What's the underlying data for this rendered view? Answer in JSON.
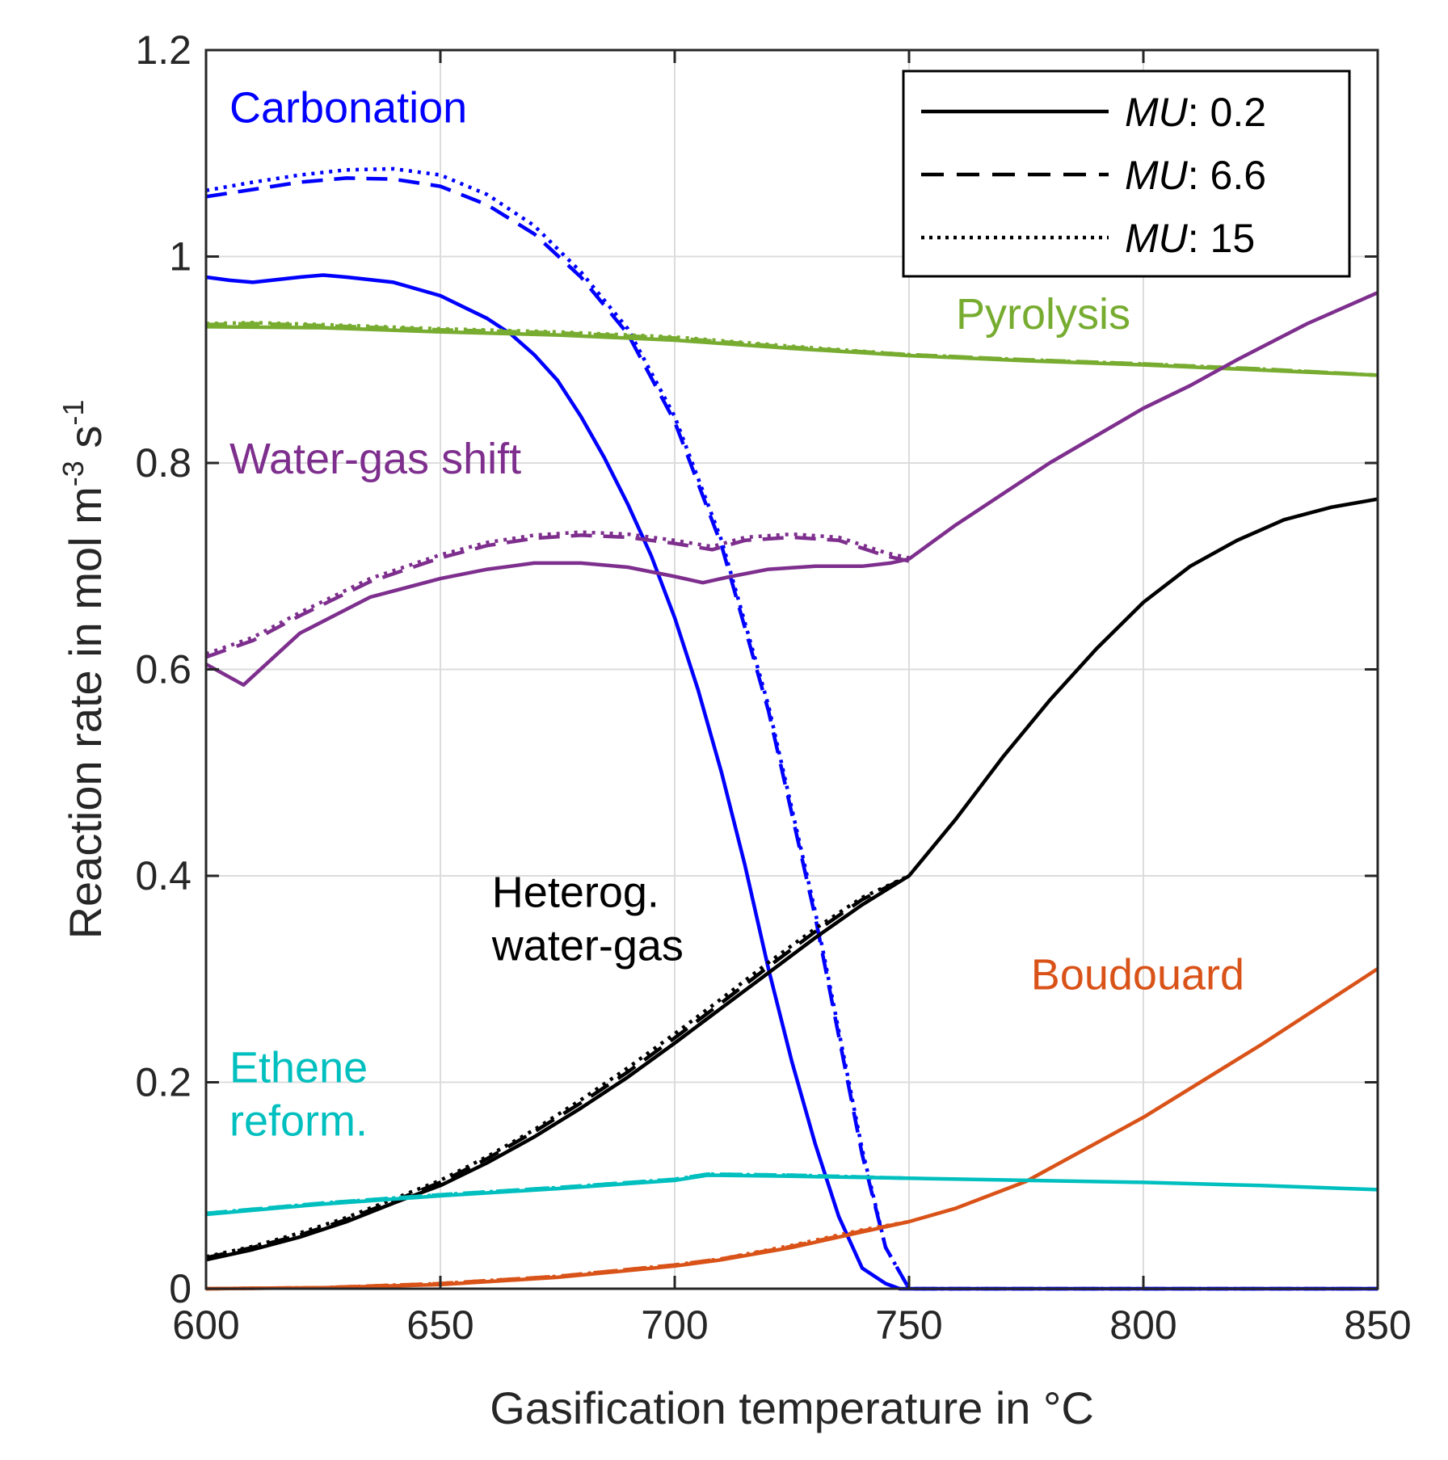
{
  "chart_data": {
    "type": "line",
    "title": "",
    "xlabel": "Gasification temperature in °C",
    "ylabel": {
      "main": "Reaction rate in mol m",
      "sup1": "-3",
      "mid": " s",
      "sup2": "-1"
    },
    "xlim": [
      600,
      850
    ],
    "ylim": [
      0,
      1.2
    ],
    "xticks": [
      600,
      650,
      700,
      750,
      800,
      850
    ],
    "xtick_labels": [
      "600",
      "650",
      "700",
      "750",
      "800",
      "850"
    ],
    "yticks": [
      0,
      0.2,
      0.4,
      0.6,
      0.8,
      1,
      1.2
    ],
    "ytick_labels": [
      "0",
      "0.2",
      "0.4",
      "0.6",
      "0.8",
      "1",
      "1.2"
    ],
    "grid": true,
    "legend": {
      "placement": "top-right",
      "entries": [
        {
          "name": "MU",
          "value": ": 0.2",
          "style": "solid"
        },
        {
          "name": "MU",
          "value": ": 6.6",
          "style": "dashed"
        },
        {
          "name": "MU",
          "value": ": 15",
          "style": "dotted"
        }
      ]
    },
    "annotations": [
      {
        "id": "carbonation",
        "lines": [
          "Carbonation"
        ],
        "color": "#0000ff",
        "x": 605,
        "y": 1.13
      },
      {
        "id": "pyrolysis",
        "lines": [
          "Pyrolysis"
        ],
        "color": "#77ac30",
        "x": 760,
        "y": 0.93
      },
      {
        "id": "water-gas-shift",
        "lines": [
          "Water-gas shift"
        ],
        "color": "#7e2f8e",
        "x": 605,
        "y": 0.79
      },
      {
        "id": "heterog",
        "lines": [
          "Heterog.",
          "water-gas"
        ],
        "color": "#000000",
        "x": 661,
        "y": 0.37
      },
      {
        "id": "boudouard",
        "lines": [
          "Boudouard"
        ],
        "color": "#d95319",
        "x": 776,
        "y": 0.29
      },
      {
        "id": "ethene",
        "lines": [
          "Ethene",
          "reform."
        ],
        "color": "#00bfbf",
        "x": 605,
        "y": 0.2
      }
    ],
    "series": [
      {
        "name": "Carbonation MU 0.2",
        "color": "#0000ff",
        "style": "solid",
        "x": [
          600,
          605,
          610,
          620,
          625,
          630,
          640,
          650,
          660,
          665,
          670,
          675,
          680,
          685,
          690,
          695,
          700,
          705,
          710,
          715,
          720,
          725,
          730,
          735,
          740,
          745,
          748,
          750,
          760,
          780,
          800,
          820,
          850
        ],
        "y": [
          0.98,
          0.977,
          0.975,
          0.98,
          0.982,
          0.98,
          0.975,
          0.962,
          0.94,
          0.925,
          0.905,
          0.88,
          0.845,
          0.805,
          0.76,
          0.71,
          0.65,
          0.58,
          0.5,
          0.41,
          0.31,
          0.22,
          0.14,
          0.07,
          0.02,
          0.005,
          0.0,
          0.0,
          0.0,
          0.0,
          0.0,
          0.0,
          0.0
        ]
      },
      {
        "name": "Carbonation MU 6.6",
        "color": "#0000ff",
        "style": "dashed",
        "x": [
          600,
          610,
          620,
          630,
          640,
          650,
          660,
          670,
          680,
          690,
          700,
          710,
          720,
          730,
          740,
          745,
          750,
          760,
          800,
          850
        ],
        "y": [
          1.058,
          1.065,
          1.072,
          1.076,
          1.075,
          1.068,
          1.05,
          1.022,
          0.98,
          0.925,
          0.84,
          0.72,
          0.56,
          0.36,
          0.13,
          0.04,
          0.0,
          0.0,
          0.0,
          0.0
        ]
      },
      {
        "name": "Carbonation MU 15",
        "color": "#0000ff",
        "style": "dotted",
        "x": [
          600,
          610,
          620,
          630,
          640,
          650,
          660,
          670,
          680,
          690,
          700,
          710,
          720,
          730,
          740,
          745,
          750,
          760,
          800,
          850
        ],
        "y": [
          1.064,
          1.072,
          1.079,
          1.084,
          1.085,
          1.079,
          1.06,
          1.03,
          0.985,
          0.93,
          0.845,
          0.725,
          0.565,
          0.365,
          0.135,
          0.04,
          0.0,
          0.0,
          0.0,
          0.0
        ]
      },
      {
        "name": "Pyrolysis MU 0.2",
        "color": "#77ac30",
        "style": "solid",
        "x": [
          600,
          625,
          650,
          675,
          700,
          725,
          750,
          775,
          800,
          825,
          850
        ],
        "y": [
          0.932,
          0.931,
          0.927,
          0.924,
          0.919,
          0.911,
          0.904,
          0.899,
          0.895,
          0.89,
          0.885
        ]
      },
      {
        "name": "Pyrolysis MU 6.6",
        "color": "#77ac30",
        "style": "dashed",
        "x": [
          600,
          610,
          625,
          650,
          675,
          700,
          725,
          750,
          775,
          800,
          825,
          850
        ],
        "y": [
          0.934,
          0.935,
          0.933,
          0.929,
          0.926,
          0.921,
          0.912,
          0.905,
          0.9,
          0.896,
          0.891,
          0.885
        ]
      },
      {
        "name": "Pyrolysis MU 15",
        "color": "#77ac30",
        "style": "dotted",
        "x": [
          600,
          610,
          625,
          650,
          675,
          700,
          725,
          750,
          775,
          800,
          825,
          850
        ],
        "y": [
          0.935,
          0.936,
          0.934,
          0.93,
          0.927,
          0.922,
          0.913,
          0.905,
          0.9,
          0.896,
          0.891,
          0.885
        ]
      },
      {
        "name": "Water-gas shift MU 0.2",
        "color": "#7e2f8e",
        "style": "solid",
        "x": [
          600,
          608,
          620,
          635,
          650,
          660,
          670,
          680,
          690,
          700,
          706,
          712,
          720,
          730,
          740,
          746,
          750,
          760,
          780,
          800,
          810,
          820,
          835,
          850
        ],
        "y": [
          0.605,
          0.585,
          0.635,
          0.67,
          0.688,
          0.697,
          0.703,
          0.703,
          0.699,
          0.69,
          0.684,
          0.69,
          0.697,
          0.7,
          0.7,
          0.703,
          0.707,
          0.74,
          0.8,
          0.853,
          0.875,
          0.9,
          0.935,
          0.965
        ]
      },
      {
        "name": "Water-gas shift MU 6.6",
        "color": "#7e2f8e",
        "style": "dashed",
        "x": [
          600,
          610,
          620,
          635,
          650,
          660,
          670,
          680,
          690,
          700,
          708,
          715,
          725,
          735,
          745,
          750
        ],
        "y": [
          0.612,
          0.628,
          0.652,
          0.685,
          0.708,
          0.72,
          0.727,
          0.73,
          0.728,
          0.722,
          0.716,
          0.725,
          0.728,
          0.725,
          0.71,
          0.705
        ]
      },
      {
        "name": "Water-gas shift MU 15",
        "color": "#7e2f8e",
        "style": "dotted",
        "x": [
          600,
          610,
          620,
          635,
          650,
          660,
          670,
          680,
          690,
          700,
          708,
          715,
          725,
          735,
          745,
          750
        ],
        "y": [
          0.615,
          0.631,
          0.655,
          0.688,
          0.711,
          0.723,
          0.73,
          0.733,
          0.731,
          0.725,
          0.719,
          0.728,
          0.731,
          0.728,
          0.713,
          0.708
        ]
      },
      {
        "name": "Heterog. water-gas MU 0.2",
        "color": "#000000",
        "style": "solid",
        "x": [
          600,
          610,
          620,
          630,
          640,
          650,
          660,
          670,
          680,
          690,
          700,
          710,
          720,
          730,
          740,
          750,
          760,
          770,
          780,
          790,
          800,
          810,
          820,
          830,
          840,
          850
        ],
        "y": [
          0.028,
          0.038,
          0.05,
          0.065,
          0.083,
          0.1,
          0.122,
          0.147,
          0.175,
          0.205,
          0.238,
          0.272,
          0.306,
          0.34,
          0.372,
          0.4,
          0.455,
          0.515,
          0.57,
          0.62,
          0.665,
          0.7,
          0.725,
          0.745,
          0.757,
          0.765
        ]
      },
      {
        "name": "Heterog. water-gas MU 6.6",
        "color": "#000000",
        "style": "dashed",
        "x": [
          600,
          610,
          620,
          630,
          640,
          650,
          660,
          670,
          680,
          690,
          700,
          710,
          720,
          730,
          740,
          750
        ],
        "y": [
          0.03,
          0.04,
          0.052,
          0.067,
          0.085,
          0.103,
          0.126,
          0.152,
          0.18,
          0.21,
          0.243,
          0.277,
          0.312,
          0.346,
          0.377,
          0.4
        ]
      },
      {
        "name": "Heterog. water-gas MU 15",
        "color": "#000000",
        "style": "dotted",
        "x": [
          600,
          610,
          620,
          630,
          640,
          650,
          660,
          670,
          680,
          690,
          700,
          710,
          720,
          730,
          740,
          750
        ],
        "y": [
          0.031,
          0.041,
          0.054,
          0.069,
          0.087,
          0.105,
          0.128,
          0.154,
          0.183,
          0.214,
          0.247,
          0.281,
          0.316,
          0.349,
          0.379,
          0.4
        ]
      },
      {
        "name": "Boudouard MU 0.2",
        "color": "#d95319",
        "style": "solid",
        "x": [
          600,
          625,
          650,
          675,
          700,
          710,
          725,
          740,
          750,
          760,
          775,
          800,
          825,
          850
        ],
        "y": [
          0.0,
          0.001,
          0.004,
          0.011,
          0.022,
          0.028,
          0.04,
          0.055,
          0.065,
          0.078,
          0.104,
          0.166,
          0.236,
          0.31
        ]
      },
      {
        "name": "Boudouard MU 6.6",
        "color": "#d95319",
        "style": "dashed",
        "x": [
          600,
          625,
          650,
          675,
          700,
          710,
          725,
          740,
          750
        ],
        "y": [
          0.0,
          0.001,
          0.005,
          0.012,
          0.023,
          0.029,
          0.041,
          0.056,
          0.065
        ]
      },
      {
        "name": "Boudouard MU 15",
        "color": "#d95319",
        "style": "dotted",
        "x": [
          600,
          625,
          650,
          675,
          700,
          710,
          725,
          740,
          750
        ],
        "y": [
          0.0,
          0.001,
          0.005,
          0.012,
          0.023,
          0.029,
          0.042,
          0.057,
          0.065
        ]
      },
      {
        "name": "Ethene reform. MU 0.2",
        "color": "#00bfbf",
        "style": "solid",
        "x": [
          600,
          625,
          650,
          675,
          700,
          707,
          725,
          750,
          775,
          800,
          825,
          850
        ],
        "y": [
          0.072,
          0.082,
          0.09,
          0.097,
          0.105,
          0.11,
          0.109,
          0.107,
          0.105,
          0.103,
          0.1,
          0.096
        ]
      },
      {
        "name": "Ethene reform. MU 6.6",
        "color": "#00bfbf",
        "style": "dashed",
        "x": [
          600,
          625,
          650,
          675,
          700,
          707,
          725,
          750
        ],
        "y": [
          0.073,
          0.083,
          0.091,
          0.098,
          0.106,
          0.111,
          0.11,
          0.107
        ]
      },
      {
        "name": "Ethene reform. MU 15",
        "color": "#00bfbf",
        "style": "dotted",
        "x": [
          600,
          625,
          650,
          675,
          700,
          707,
          725,
          750
        ],
        "y": [
          0.073,
          0.083,
          0.091,
          0.098,
          0.106,
          0.111,
          0.11,
          0.107
        ]
      }
    ]
  }
}
